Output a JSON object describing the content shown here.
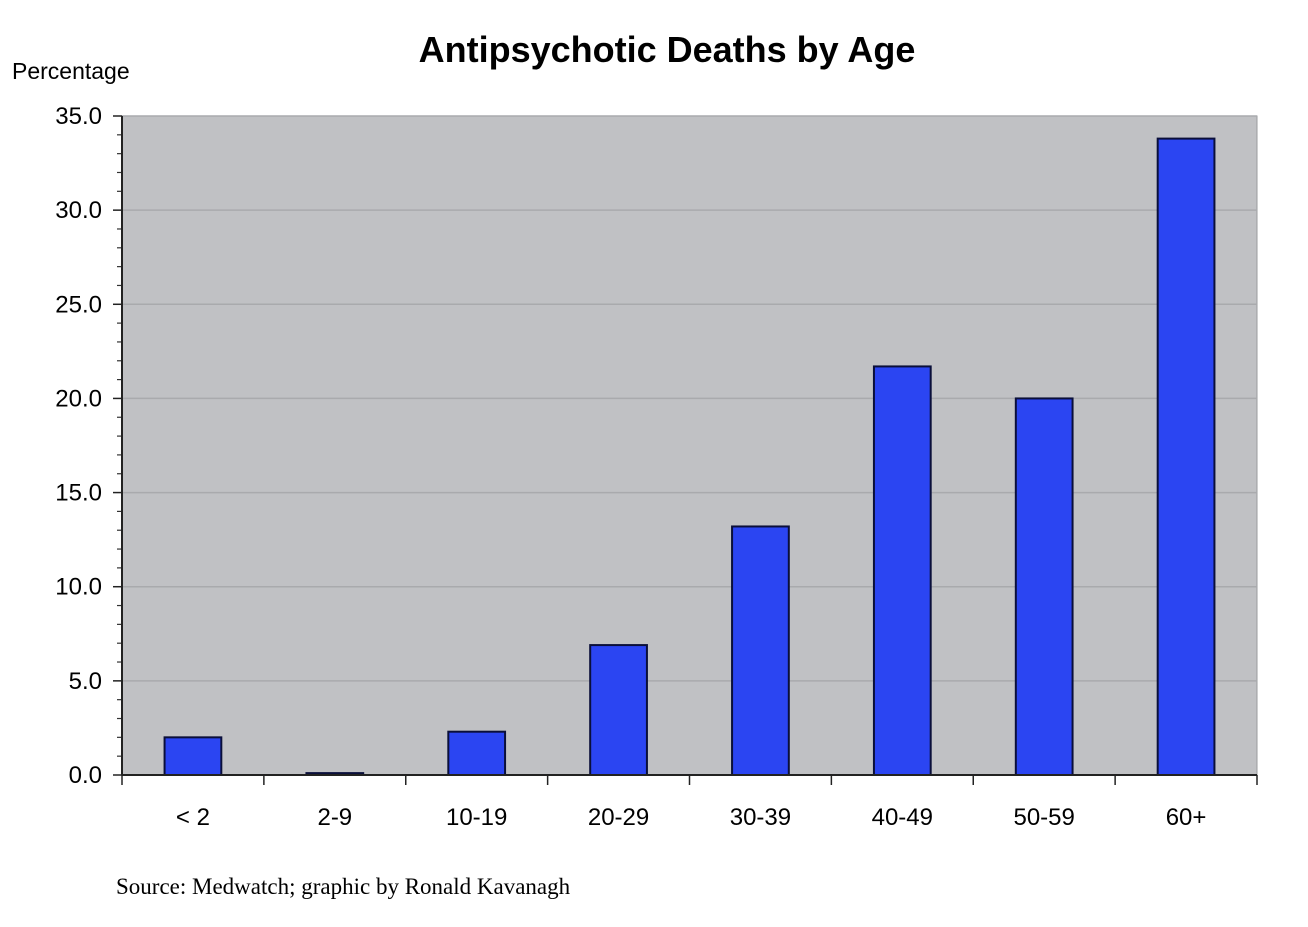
{
  "chart_data": {
    "type": "bar",
    "title": "Antipsychotic Deaths by Age",
    "ylabel": "Percentage",
    "xlabel": "",
    "categories": [
      "< 2",
      "2-9",
      "10-19",
      "20-29",
      "30-39",
      "40-49",
      "50-59",
      "60+"
    ],
    "values": [
      2.0,
      0.1,
      2.3,
      6.9,
      13.2,
      21.7,
      20.0,
      33.8
    ],
    "ylim": [
      0,
      35
    ],
    "yticks": [
      "0.0",
      "5.0",
      "10.0",
      "15.0",
      "20.0",
      "25.0",
      "30.0",
      "35.0"
    ],
    "grid": true,
    "legend": "none",
    "source": "Source: Medwatch; graphic by Ronald  Kavanagh",
    "colors": {
      "bar": "#2b45f2",
      "bar_stroke": "#0a0f3a",
      "plot_background": "#c0c1c4",
      "grid": "#a9aaad"
    }
  }
}
